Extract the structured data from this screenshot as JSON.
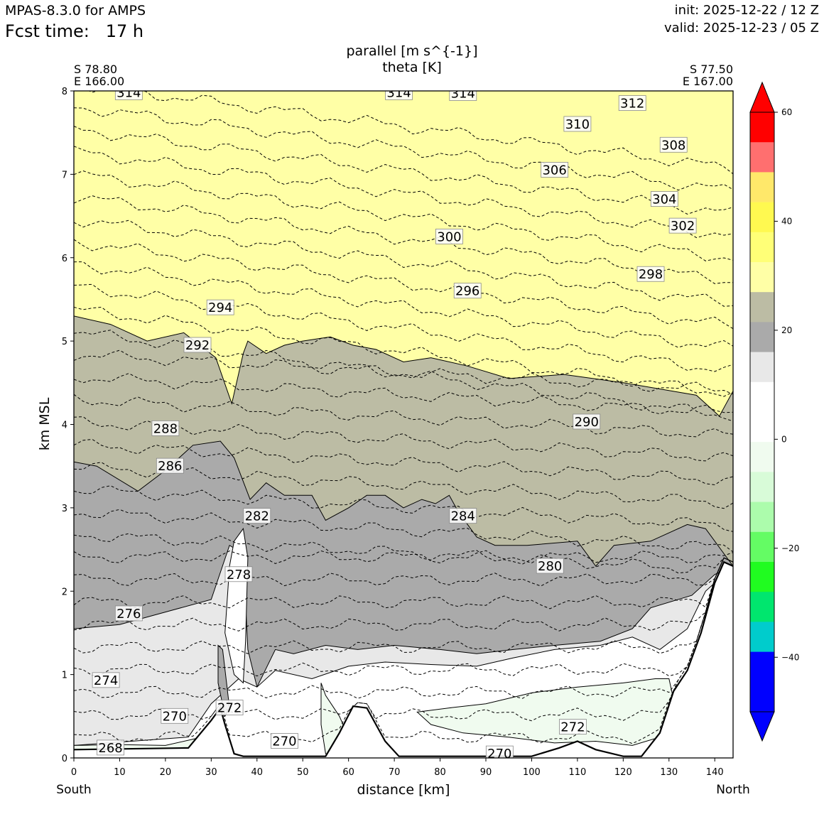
{
  "header": {
    "model": "MPAS-8.3.0 for AMPS",
    "forecast": "Fcst time:   17 h",
    "init": "init: 2025-12-22 / 12 Z",
    "valid": "valid: 2025-12-23 / 05 Z"
  },
  "chart_data": {
    "type": "contour",
    "title": [
      "parallel [m s^{-1}]",
      "theta [K]"
    ],
    "xlabel": "distance [km]",
    "ylabel": "km MSL",
    "xlim": [
      0,
      144
    ],
    "ylim": [
      0,
      8
    ],
    "x_ticks": [
      0,
      10,
      20,
      30,
      40,
      50,
      60,
      70,
      80,
      90,
      100,
      110,
      120,
      130,
      140
    ],
    "y_ticks": [
      0,
      1,
      2,
      3,
      4,
      5,
      6,
      7,
      8
    ],
    "endpoints": {
      "left": {
        "lat": "S 78.80",
        "lon": "E 166.00",
        "direction": "South"
      },
      "right": {
        "lat": "S 77.50",
        "lon": "E 167.00",
        "direction": "North"
      }
    },
    "colorbar": {
      "ticks": [
        60,
        40,
        20,
        0,
        -20,
        -40
      ],
      "tick_labels": [
        "60",
        "40",
        "20",
        "0",
        "−20",
        "−40"
      ],
      "colors": [
        "#ff0000",
        "#ff6f6f",
        "#ffe86a",
        "#fff950",
        "#ffff77",
        "#ffffa6",
        "#bcbca4",
        "#aaaaaa",
        "#e8e8e8",
        "#ffffff",
        "#ffffff",
        "#f0fbef",
        "#d8fbd8",
        "#acfcac",
        "#64fc64",
        "#20fc20",
        "#00e66e",
        "#00cccc",
        "#0000ff",
        "#0000ff"
      ],
      "over_color": "#ff0000",
      "under_color": "#0000ff",
      "extend": "both"
    },
    "wind_regions": [
      {
        "level": "20-25",
        "color": "#bcbca4",
        "upper_boundary_km": [
          [
            0,
            5.3
          ],
          [
            8,
            5.2
          ],
          [
            16,
            5.0
          ],
          [
            24,
            5.1
          ],
          [
            31,
            4.8
          ],
          [
            34.5,
            4.25
          ],
          [
            37,
            4.85
          ],
          [
            38,
            5.0
          ],
          [
            42,
            4.85
          ],
          [
            46,
            4.95
          ],
          [
            50,
            5.0
          ],
          [
            56,
            5.05
          ],
          [
            61,
            4.95
          ],
          [
            66,
            4.9
          ],
          [
            72,
            4.75
          ],
          [
            78,
            4.8
          ],
          [
            86,
            4.7
          ],
          [
            95,
            4.55
          ],
          [
            107,
            4.6
          ],
          [
            120,
            4.5
          ],
          [
            136,
            4.35
          ],
          [
            141,
            4.1
          ],
          [
            144,
            4.4
          ]
        ]
      },
      {
        "level": "15-20",
        "color": "#aaaaaa",
        "upper_boundary_km": [
          [
            0,
            3.55
          ],
          [
            5,
            3.5
          ],
          [
            14,
            3.2
          ],
          [
            20,
            3.45
          ],
          [
            26,
            3.75
          ],
          [
            32,
            3.8
          ],
          [
            35,
            3.6
          ],
          [
            38.5,
            3.1
          ],
          [
            42,
            3.3
          ],
          [
            46,
            3.15
          ],
          [
            52,
            3.15
          ],
          [
            55,
            2.85
          ],
          [
            60,
            3.0
          ],
          [
            64,
            3.15
          ],
          [
            68,
            3.15
          ],
          [
            72,
            3.0
          ],
          [
            76,
            3.1
          ],
          [
            79,
            3.05
          ],
          [
            82,
            3.15
          ],
          [
            84,
            2.95
          ],
          [
            88,
            2.65
          ],
          [
            92,
            2.55
          ],
          [
            99,
            2.55
          ],
          [
            110,
            2.6
          ],
          [
            114,
            2.3
          ],
          [
            118,
            2.55
          ],
          [
            126,
            2.6
          ],
          [
            134,
            2.8
          ],
          [
            138,
            2.75
          ],
          [
            144,
            2.3
          ]
        ]
      },
      {
        "level": "10-15",
        "color": "#e8e8e8",
        "upper_boundary_km": [
          [
            0,
            1.55
          ],
          [
            10,
            1.6
          ],
          [
            20,
            1.75
          ],
          [
            30,
            1.9
          ],
          [
            34,
            2.55
          ],
          [
            37,
            2.45
          ],
          [
            38,
            1.3
          ],
          [
            40,
            0.85
          ],
          [
            44,
            1.3
          ],
          [
            48,
            1.25
          ],
          [
            55,
            1.35
          ],
          [
            62,
            1.3
          ],
          [
            70,
            1.35
          ],
          [
            80,
            1.3
          ],
          [
            88,
            1.25
          ],
          [
            96,
            1.3
          ],
          [
            105,
            1.35
          ],
          [
            115,
            1.4
          ],
          [
            122,
            1.55
          ],
          [
            126,
            1.8
          ],
          [
            135,
            1.95
          ],
          [
            140,
            2.2
          ],
          [
            144,
            2.3
          ]
        ]
      },
      {
        "level": "-5-0",
        "color": "#f0fbef",
        "region": "green patch 75-130 km, 0.3-1.0 km"
      }
    ],
    "theta_contours": [
      {
        "value": 268,
        "label_x_km": 8,
        "label_z_km": 0.12
      },
      {
        "value": 270,
        "label_x_km": 22,
        "label_z_km": 0.5
      },
      {
        "value": 270,
        "label_x_km": 46,
        "label_z_km": 0.2
      },
      {
        "value": 270,
        "label_x_km": 93,
        "label_z_km": 0.05
      },
      {
        "value": 272,
        "label_x_km": 34,
        "label_z_km": 0.6
      },
      {
        "value": 272,
        "label_x_km": 109,
        "label_z_km": 0.37
      },
      {
        "value": 274,
        "label_x_km": 7,
        "label_z_km": 0.93
      },
      {
        "value": 276,
        "label_x_km": 12,
        "label_z_km": 1.73
      },
      {
        "value": 278,
        "label_x_km": 36,
        "label_z_km": 2.2
      },
      {
        "value": 280,
        "label_x_km": 104,
        "label_z_km": 2.3
      },
      {
        "value": 282,
        "label_x_km": 40,
        "label_z_km": 2.9
      },
      {
        "value": 284,
        "label_x_km": 85,
        "label_z_km": 2.9
      },
      {
        "value": 286,
        "label_x_km": 21,
        "label_z_km": 3.5
      },
      {
        "value": 288,
        "label_x_km": 20,
        "label_z_km": 3.95
      },
      {
        "value": 290,
        "label_x_km": 112,
        "label_z_km": 4.03
      },
      {
        "value": 292,
        "label_x_km": 27,
        "label_z_km": 4.95
      },
      {
        "value": 294,
        "label_x_km": 32,
        "label_z_km": 5.4
      },
      {
        "value": 296,
        "label_x_km": 86,
        "label_z_km": 5.6
      },
      {
        "value": 298,
        "label_x_km": 126,
        "label_z_km": 5.8
      },
      {
        "value": 300,
        "label_x_km": 82,
        "label_z_km": 6.25
      },
      {
        "value": 302,
        "label_x_km": 133,
        "label_z_km": 6.38
      },
      {
        "value": 304,
        "label_x_km": 129,
        "label_z_km": 6.7
      },
      {
        "value": 306,
        "label_x_km": 105,
        "label_z_km": 7.05
      },
      {
        "value": 308,
        "label_x_km": 131,
        "label_z_km": 7.35
      },
      {
        "value": 310,
        "label_x_km": 110,
        "label_z_km": 7.6
      },
      {
        "value": 312,
        "label_x_km": 122,
        "label_z_km": 7.85
      },
      {
        "value": 314,
        "label_x_km": 12,
        "label_z_km": 7.98
      },
      {
        "value": 314,
        "label_x_km": 71,
        "label_z_km": 7.98
      },
      {
        "value": 314,
        "label_x_km": 85,
        "label_z_km": 7.97
      }
    ],
    "terrain_km": [
      [
        0,
        0.1
      ],
      [
        25,
        0.12
      ],
      [
        30,
        0.45
      ],
      [
        32,
        0.6
      ],
      [
        33,
        0.4
      ],
      [
        35,
        0.05
      ],
      [
        37,
        0.02
      ],
      [
        55,
        0.02
      ],
      [
        58,
        0.3
      ],
      [
        61,
        0.62
      ],
      [
        64,
        0.6
      ],
      [
        68,
        0.2
      ],
      [
        71,
        0.02
      ],
      [
        100,
        0.02
      ],
      [
        106,
        0.12
      ],
      [
        110,
        0.2
      ],
      [
        114,
        0.1
      ],
      [
        120,
        0.02
      ],
      [
        124,
        0.02
      ],
      [
        128,
        0.3
      ],
      [
        131,
        0.8
      ],
      [
        134,
        1.05
      ],
      [
        137,
        1.5
      ],
      [
        140,
        2.1
      ],
      [
        142,
        2.35
      ],
      [
        144,
        2.3
      ]
    ]
  }
}
